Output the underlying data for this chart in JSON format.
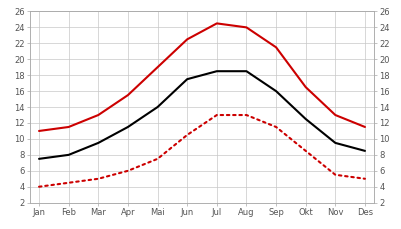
{
  "months": [
    "Jan",
    "Feb",
    "Mar",
    "Apr",
    "Mai",
    "Jun",
    "Jul",
    "Aug",
    "Sep",
    "Okt",
    "Nov",
    "Des"
  ],
  "mean_temp": [
    7.5,
    8.0,
    9.5,
    11.5,
    14.0,
    17.5,
    18.5,
    18.5,
    16.0,
    12.5,
    9.5,
    8.5
  ],
  "max_temp": [
    11.0,
    11.5,
    13.0,
    15.5,
    19.0,
    22.5,
    24.5,
    24.0,
    21.5,
    16.5,
    13.0,
    11.5
  ],
  "min_temp": [
    4.0,
    4.5,
    5.0,
    6.0,
    7.5,
    10.5,
    13.0,
    13.0,
    11.5,
    8.5,
    5.5,
    5.0
  ],
  "line_black_color": "#000000",
  "line_red_solid_color": "#cc0000",
  "line_red_dotted_color": "#cc0000",
  "background_color": "#ffffff",
  "grid_color": "#c8c8c8",
  "ylim": [
    2,
    26
  ],
  "yticks": [
    2,
    4,
    6,
    8,
    10,
    12,
    14,
    16,
    18,
    20,
    22,
    24,
    26
  ],
  "header_color": "#4dc8dc",
  "tick_color": "#555555",
  "spine_color": "#aaaaaa"
}
